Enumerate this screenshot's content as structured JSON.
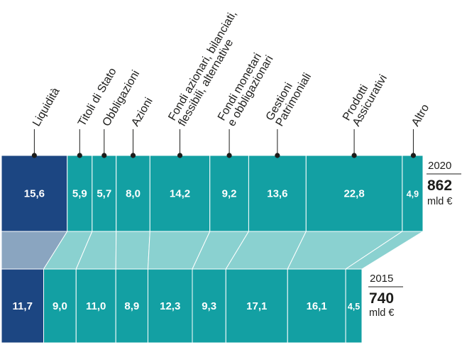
{
  "chart_data": {
    "type": "stacked-bar-comparison",
    "unit": "%",
    "categories": [
      "Liquidità",
      "Titoli di Stato",
      "Obbligazioni",
      "Azioni",
      "Fondi azionari, bilanciati, flessibili, alternative",
      "Fondi monetari e obbligazionari",
      "Gestioni Patrimoniali",
      "Prodotti Assicurativi",
      "Altro"
    ],
    "category_lines": [
      [
        "Liquidità"
      ],
      [
        "Titoli di Stato"
      ],
      [
        "Obbligazioni"
      ],
      [
        "Azioni"
      ],
      [
        "Fondi azionari, bilanciati,",
        "flessibili, alternative"
      ],
      [
        "Fondi monetari",
        "e obbligazionari"
      ],
      [
        "Gestioni",
        "Patrimoniali"
      ],
      [
        "Prodotti",
        "Assicurativi"
      ],
      [
        "Altro"
      ]
    ],
    "series": [
      {
        "name": "2020",
        "values": [
          15.6,
          5.9,
          5.7,
          8.0,
          14.2,
          9.2,
          13.6,
          22.8,
          4.9
        ],
        "labels": [
          "15,6",
          "5,9",
          "5,7",
          "8,0",
          "14,2",
          "9,2",
          "13,6",
          "22,8",
          "4,9"
        ],
        "total": "862",
        "unit": "mld €"
      },
      {
        "name": "2015",
        "values": [
          11.7,
          9.0,
          11.0,
          8.9,
          12.3,
          9.3,
          17.1,
          16.1,
          4.5
        ],
        "labels": [
          "11,7",
          "9,0",
          "11,0",
          "8,9",
          "12,3",
          "9,3",
          "17,1",
          "16,1",
          "4,5"
        ],
        "total": "740",
        "unit": "mld €"
      }
    ],
    "colors": {
      "first_segment": "#1c4682",
      "segments": "#13a0a3",
      "first_connector": "#8aa5c0",
      "connectors": "#8ad1d0",
      "divider": "#ffffff"
    }
  }
}
